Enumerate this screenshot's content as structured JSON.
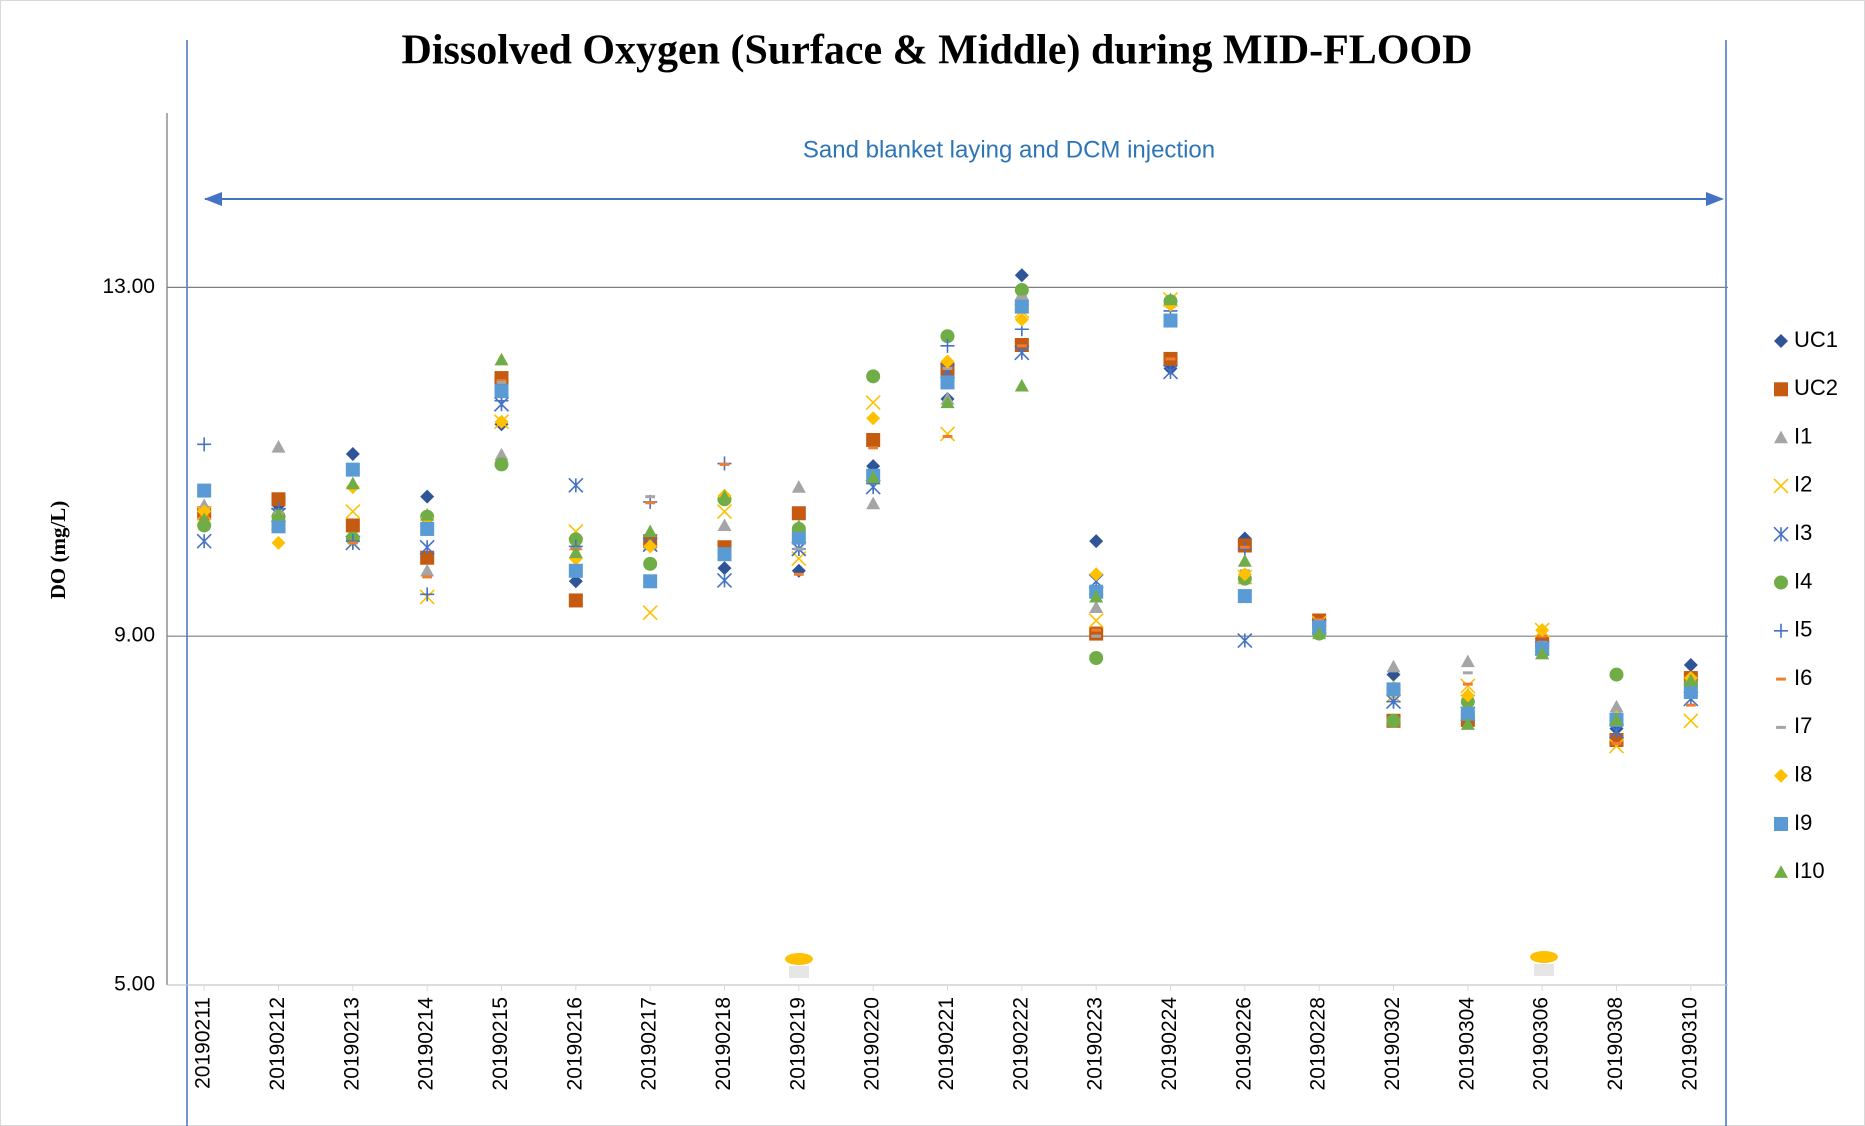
{
  "chart_data": {
    "type": "scatter",
    "title": "Dissolved Oxygen (Surface & Middle) during MID-FLOOD",
    "y_label": "DO (mg/L)",
    "annotation": "Sand blanket laying and DCM injection",
    "categories": [
      "20190211",
      "20190212",
      "20190213",
      "20190214",
      "20190215",
      "20190216",
      "20190217",
      "20190218",
      "20190219",
      "20190220",
      "20190221",
      "20190222",
      "20190223",
      "20190224",
      "20190226",
      "20190228",
      "20190302",
      "20190304",
      "20190306",
      "20190308",
      "20190310"
    ],
    "ylim": [
      5,
      15
    ],
    "yticks": [
      {
        "value": 5,
        "label": "5.00"
      },
      {
        "value": 9,
        "label": "9.00"
      },
      {
        "value": 13,
        "label": "13.00"
      }
    ],
    "grid": true,
    "legend": "right",
    "series": [
      {
        "name": "UC1",
        "color": "#2f5597",
        "marker": "diamond",
        "values": [
          10.46,
          10.5,
          11.09,
          10.6,
          11.43,
          9.63,
          10.09,
          9.78,
          9.75,
          10.95,
          11.72,
          13.14,
          10.09,
          12.07,
          10.12,
          9.14,
          8.56,
          8.25,
          8.97,
          7.94,
          8.67
        ]
      },
      {
        "name": "UC2",
        "color": "#c55a11",
        "marker": "square",
        "values": [
          10.41,
          10.57,
          10.27,
          9.9,
          11.96,
          9.41,
          10.09,
          10.02,
          10.41,
          11.25,
          12.06,
          12.34,
          9.03,
          12.18,
          10.04,
          9.18,
          8.03,
          8.04,
          8.93,
          7.81,
          8.52
        ]
      },
      {
        "name": "I1",
        "color": "#a5a5a5",
        "marker": "triangle",
        "values": [
          10.5,
          11.17,
          10.9,
          9.75,
          11.08,
          10.05,
          10.05,
          10.27,
          10.71,
          10.52,
          11.72,
          12.92,
          9.33,
          12.86,
          9.66,
          9.11,
          8.65,
          8.71,
          8.8,
          8.19,
          8.49
        ]
      },
      {
        "name": "I2",
        "color": "#ffc000",
        "marker": "x",
        "values": [
          10.41,
          10.3,
          10.43,
          9.45,
          11.46,
          10.2,
          9.27,
          10.43,
          9.89,
          11.68,
          11.32,
          12.73,
          9.18,
          12.86,
          9.68,
          9.15,
          8.32,
          8.43,
          9.07,
          7.74,
          8.03
        ]
      },
      {
        "name": "I3",
        "color": "#4472c4",
        "marker": "star",
        "values": [
          10.09,
          10.39,
          10.07,
          10.02,
          11.66,
          10.73,
          10.05,
          9.64,
          10.0,
          10.71,
          12.04,
          12.25,
          9.63,
          12.03,
          8.95,
          9.11,
          8.25,
          8.11,
          8.86,
          7.91,
          8.28
        ]
      },
      {
        "name": "I4",
        "color": "#70ad47",
        "marker": "circle",
        "values": [
          10.27,
          10.37,
          10.12,
          10.37,
          10.97,
          10.11,
          9.83,
          10.57,
          10.23,
          11.98,
          12.44,
          12.97,
          8.75,
          12.84,
          9.66,
          9.03,
          8.03,
          8.25,
          8.82,
          8.56,
          8.45
        ]
      },
      {
        "name": "I5",
        "color": "#4472c4",
        "marker": "plus",
        "values": [
          11.2,
          10.46,
          10.09,
          9.48,
          11.7,
          10.03,
          10.54,
          10.98,
          10.0,
          10.75,
          12.33,
          12.52,
          9.48,
          12.73,
          10.0,
          9.11,
          8.25,
          8.32,
          8.89,
          8.04,
          8.32
        ]
      },
      {
        "name": "I6",
        "color": "#ed7d31",
        "marker": "dash",
        "values": [
          10.37,
          10.41,
          10.07,
          9.68,
          11.93,
          10.0,
          10.53,
          10.97,
          9.71,
          11.16,
          11.29,
          12.33,
          9.07,
          12.18,
          10.02,
          9.19,
          8.41,
          8.45,
          9.0,
          7.77,
          8.21
        ]
      },
      {
        "name": "I7",
        "color": "#a5a5a5",
        "marker": "dash",
        "values": [
          10.43,
          10.41,
          10.87,
          10.34,
          11.91,
          9.89,
          10.6,
          10.56,
          10.0,
          10.84,
          12.07,
          12.89,
          9.0,
          12.78,
          9.75,
          9.17,
          8.45,
          8.58,
          8.93,
          8.11,
          8.49
        ]
      },
      {
        "name": "I8",
        "color": "#ffc000",
        "marker": "diamond",
        "values": [
          10.43,
          10.07,
          10.71,
          10.35,
          11.46,
          9.89,
          10.03,
          10.61,
          10.16,
          11.5,
          12.15,
          12.63,
          9.71,
          12.8,
          9.71,
          9.1,
          8.41,
          8.32,
          9.07,
          8.07,
          8.52
        ]
      },
      {
        "name": "I9",
        "color": "#5b9bd5",
        "marker": "square",
        "values": [
          10.67,
          10.26,
          10.91,
          10.23,
          11.81,
          9.75,
          9.63,
          9.94,
          10.13,
          10.84,
          11.91,
          12.78,
          9.51,
          12.62,
          9.46,
          9.1,
          8.39,
          8.11,
          8.86,
          8.04,
          8.36
        ]
      },
      {
        "name": "I10",
        "color": "#70ad47",
        "marker": "triangle",
        "values": [
          10.34,
          10.39,
          10.75,
          10.39,
          12.17,
          9.96,
          10.2,
          10.6,
          10.26,
          10.82,
          11.68,
          11.87,
          9.45,
          12.86,
          9.86,
          9.03,
          8.03,
          7.99,
          8.8,
          8.04,
          8.49
        ]
      }
    ]
  }
}
